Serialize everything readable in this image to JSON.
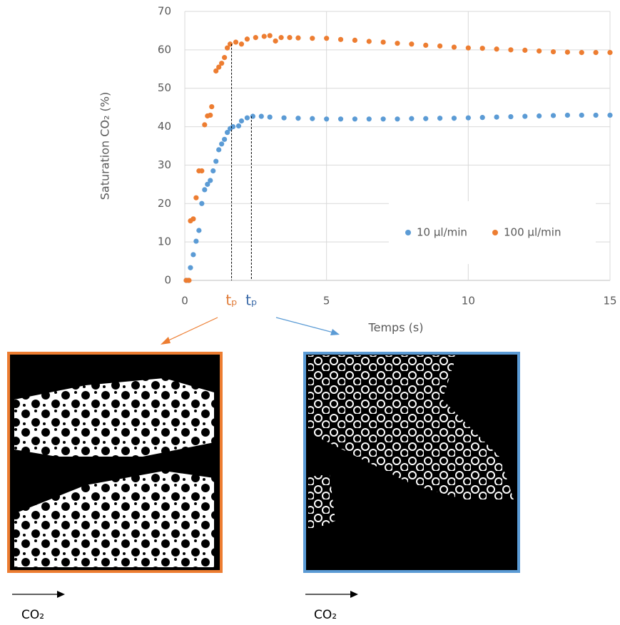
{
  "chart_data": {
    "type": "scatter",
    "x_label": "Temps (s)",
    "y_label": "Saturation CO₂ (%)",
    "xlim": [
      0,
      15
    ],
    "xticks": [
      0,
      5,
      10,
      15
    ],
    "ylim": [
      0,
      70
    ],
    "yticks": [
      0,
      10,
      20,
      30,
      40,
      50,
      60,
      70
    ],
    "grid": true,
    "legend": "lower right",
    "series": [
      {
        "name": "10 µl/min",
        "color": "#5b9bd5",
        "x": [
          0.05,
          0.12,
          0.2,
          0.3,
          0.4,
          0.5,
          0.6,
          0.7,
          0.8,
          0.9,
          1.0,
          1.1,
          1.2,
          1.3,
          1.4,
          1.5,
          1.6,
          1.7,
          1.9,
          2.0,
          2.2,
          2.4,
          2.7,
          3.0,
          3.5,
          4.0,
          4.5,
          5.0,
          5.5,
          6.0,
          6.5,
          7.0,
          7.5,
          8.0,
          8.5,
          9.0,
          9.5,
          10.0,
          10.5,
          11.0,
          11.5,
          12.0,
          12.5,
          13.0,
          13.5,
          14.0,
          14.5,
          15.0
        ],
        "values": [
          0,
          0,
          3.3,
          6.7,
          10.2,
          13,
          20,
          23.6,
          25,
          26,
          28.5,
          31,
          34,
          35.5,
          36.7,
          38.5,
          39.5,
          40,
          40.2,
          41.5,
          42.3,
          42.7,
          42.7,
          42.5,
          42.3,
          42.2,
          42.1,
          42,
          42,
          42,
          42,
          42,
          42,
          42.1,
          42.1,
          42.2,
          42.2,
          42.3,
          42.4,
          42.5,
          42.6,
          42.7,
          42.8,
          42.9,
          43,
          43,
          43,
          43
        ]
      },
      {
        "name": "100 µl/min",
        "color": "#ed7d31",
        "x": [
          0.05,
          0.15,
          0.2,
          0.3,
          0.4,
          0.5,
          0.6,
          0.7,
          0.8,
          0.9,
          0.95,
          1.1,
          1.2,
          1.3,
          1.4,
          1.5,
          1.6,
          1.8,
          2.0,
          2.2,
          2.5,
          2.8,
          3.0,
          3.2,
          3.4,
          3.7,
          4.0,
          4.5,
          5.0,
          5.5,
          6.0,
          6.5,
          7.0,
          7.5,
          8.0,
          8.5,
          9.0,
          9.5,
          10.0,
          10.5,
          11.0,
          11.5,
          12.0,
          12.5,
          13.0,
          13.5,
          14.0,
          14.5,
          15.0
        ],
        "values": [
          0,
          0,
          15.5,
          16,
          21.5,
          28.5,
          28.5,
          40.5,
          42.8,
          43,
          45.2,
          54.5,
          55.5,
          56.5,
          58,
          60.5,
          61.5,
          62,
          61.5,
          62.8,
          63.2,
          63.5,
          63.7,
          62.3,
          63.2,
          63.2,
          63.1,
          63,
          63,
          62.7,
          62.5,
          62.2,
          62,
          61.7,
          61.5,
          61.2,
          61,
          60.7,
          60.5,
          60.4,
          60.2,
          60,
          59.9,
          59.7,
          59.5,
          59.4,
          59.3,
          59.3,
          59.3
        ]
      }
    ],
    "annotations": [
      {
        "text": "tₚ",
        "x": 1.65,
        "y": 61.5,
        "color": "#e07a36"
      },
      {
        "text": "tₚ",
        "x": 2.35,
        "y": 42.7,
        "color": "#3a6aa8"
      }
    ]
  },
  "panels": [
    {
      "label": "CO₂"
    },
    {
      "label": "CO₂"
    }
  ]
}
